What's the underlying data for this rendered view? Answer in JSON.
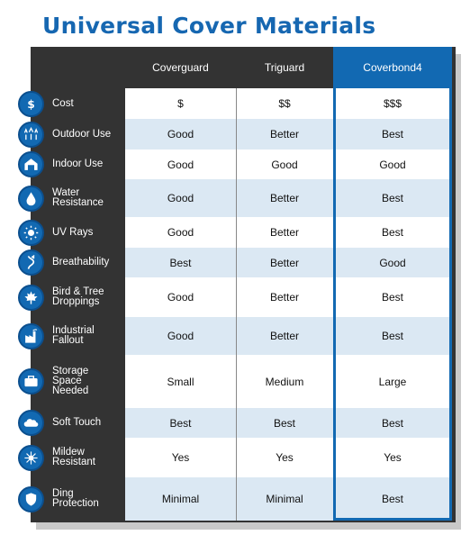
{
  "title": "Universal Cover Materials",
  "chart_data": {
    "type": "table",
    "columns": [
      "Coverguard",
      "Triguard",
      "Coverbond4"
    ],
    "highlighted_column": "Coverbond4",
    "rows": [
      {
        "label": "Cost",
        "icon": "dollar-icon",
        "values": [
          "$",
          "$$",
          "$$$"
        ]
      },
      {
        "label": "Outdoor Use",
        "icon": "trees-icon",
        "values": [
          "Good",
          "Better",
          "Best"
        ]
      },
      {
        "label": "Indoor Use",
        "icon": "garage-icon",
        "values": [
          "Good",
          "Good",
          "Good"
        ]
      },
      {
        "label": "Water\nResistance",
        "icon": "water-drop-icon",
        "values": [
          "Good",
          "Better",
          "Best"
        ]
      },
      {
        "label": "UV Rays",
        "icon": "sun-icon",
        "values": [
          "Good",
          "Better",
          "Best"
        ]
      },
      {
        "label": "Breathability",
        "icon": "air-flow-icon",
        "values": [
          "Best",
          "Better",
          "Good"
        ]
      },
      {
        "label": "Bird & Tree\nDroppings",
        "icon": "maple-leaf-icon",
        "values": [
          "Good",
          "Better",
          "Best"
        ]
      },
      {
        "label": "Industrial\nFallout",
        "icon": "factory-icon",
        "values": [
          "Good",
          "Better",
          "Best"
        ]
      },
      {
        "label": "Storage\nSpace\nNeeded",
        "icon": "briefcase-icon",
        "values": [
          "Small",
          "Medium",
          "Large"
        ]
      },
      {
        "label": "Soft Touch",
        "icon": "cloud-icon",
        "values": [
          "Best",
          "Best",
          "Best"
        ]
      },
      {
        "label": "Mildew\nResistant",
        "icon": "sparkle-icon",
        "values": [
          "Yes",
          "Yes",
          "Yes"
        ]
      },
      {
        "label": "Ding\nProtection",
        "icon": "shield-icon",
        "values": [
          "Minimal",
          "Minimal",
          "Best"
        ]
      }
    ]
  },
  "colors": {
    "accent": "#1269b2",
    "header_bg": "#333333",
    "row_alt": "#dbe8f3",
    "row_plain": "#ffffff"
  }
}
